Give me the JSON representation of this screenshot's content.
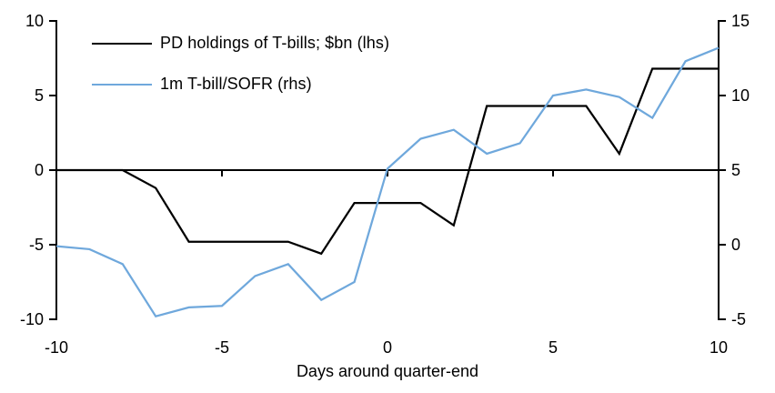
{
  "chart_data": {
    "type": "line",
    "title": "",
    "xlabel": "Days around quarter-end",
    "grid": false,
    "legend_position": "top-left",
    "background": "#ffffff",
    "x": [
      -10,
      -9,
      -8,
      -7,
      -6,
      -5,
      -4,
      -3,
      -2,
      -1,
      0,
      1,
      2,
      3,
      4,
      5,
      6,
      7,
      8,
      9,
      10
    ],
    "series": [
      {
        "name": "PD holdings of T-bills; $bn (lhs)",
        "axis": "lhs",
        "color": "#000000",
        "values": [
          0,
          0,
          0,
          -1.2,
          -4.8,
          -4.8,
          -4.8,
          -4.8,
          -5.6,
          -2.2,
          -2.2,
          -2.2,
          -3.7,
          4.3,
          4.3,
          4.3,
          4.3,
          1.1,
          6.8,
          6.8,
          6.8
        ]
      },
      {
        "name": "1m T-bill/SOFR (rhs)",
        "axis": "rhs",
        "color": "#6fa8dc",
        "values": [
          -0.1,
          -0.3,
          -1.3,
          -4.8,
          -4.2,
          -4.1,
          -2.1,
          -1.3,
          -3.7,
          -2.5,
          5.1,
          7.1,
          7.7,
          6.1,
          6.8,
          10.0,
          10.4,
          9.9,
          8.5,
          12.3,
          13.2
        ]
      }
    ],
    "left_axis": {
      "min": -10,
      "max": 10,
      "ticks": [
        10,
        5,
        0,
        -5,
        -10
      ]
    },
    "right_axis": {
      "min": -5,
      "max": 15,
      "ticks": [
        15,
        10,
        5,
        0,
        -5
      ]
    },
    "x_axis": {
      "min": -10,
      "max": 10,
      "labeled_ticks": [
        -10,
        -5,
        0,
        5,
        10
      ],
      "inner_ticks": [
        -5,
        0,
        5
      ]
    }
  }
}
